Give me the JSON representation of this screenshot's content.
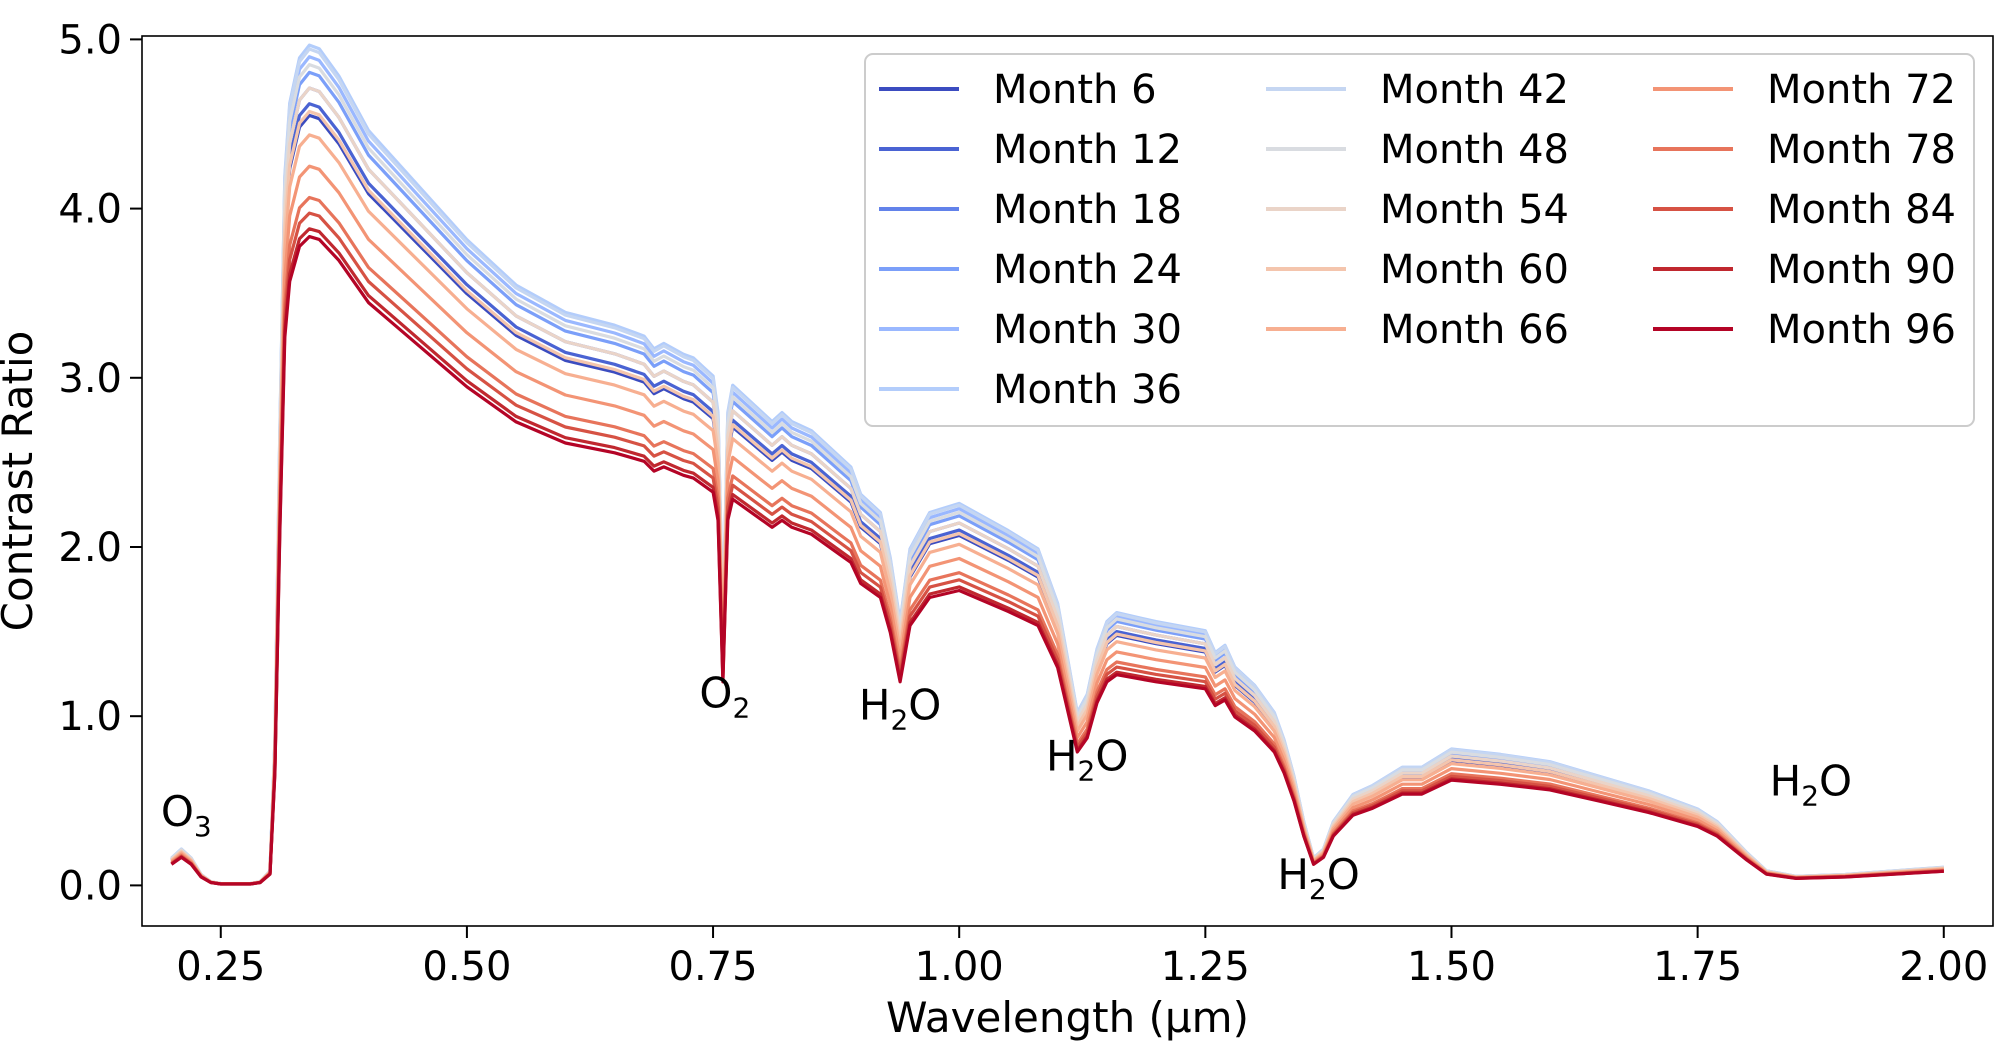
{
  "chart_data": {
    "type": "line",
    "title": "",
    "xlabel": "Wavelength (μm)",
    "ylabel": "Contrast Ratio",
    "xlim": [
      0.17,
      2.05
    ],
    "ylim": [
      -0.24,
      5.02
    ],
    "xticks": [
      0.25,
      0.5,
      0.75,
      1.0,
      1.25,
      1.5,
      1.75,
      2.0
    ],
    "xtick_labels": [
      "0.25",
      "0.50",
      "0.75",
      "1.00",
      "1.25",
      "1.50",
      "1.75",
      "2.00"
    ],
    "yticks": [
      0.0,
      1.0,
      2.0,
      3.0,
      4.0,
      5.0
    ],
    "ytick_labels": [
      "0.0",
      "1.0",
      "2.0",
      "3.0",
      "4.0",
      "5.0"
    ],
    "grid": false,
    "legend": {
      "placement": "top-right",
      "columns": 3
    },
    "colormap": "coolwarm",
    "series": [
      {
        "name": "Month 6",
        "color": "#3b4cc0",
        "scale": 0.985
      },
      {
        "name": "Month 12",
        "color": "#4a63d3",
        "scale": 1.0
      },
      {
        "name": "Month 18",
        "color": "#6282ea",
        "scale": 1.02
      },
      {
        "name": "Month 24",
        "color": "#7b9ff9",
        "scale": 1.04
      },
      {
        "name": "Month 30",
        "color": "#9ab8ff",
        "scale": 1.06
      },
      {
        "name": "Month 36",
        "color": "#b3cdfb",
        "scale": 1.075
      },
      {
        "name": "Month 42",
        "color": "#c5d6f2",
        "scale": 1.07
      },
      {
        "name": "Month 48",
        "color": "#d9dce1",
        "scale": 1.05
      },
      {
        "name": "Month 54",
        "color": "#ead4c8",
        "scale": 1.02
      },
      {
        "name": "Month 60",
        "color": "#f4c5ad",
        "scale": 0.99
      },
      {
        "name": "Month 66",
        "color": "#f7af91",
        "scale": 0.96
      },
      {
        "name": "Month 72",
        "color": "#f39475",
        "scale": 0.92
      },
      {
        "name": "Month 78",
        "color": "#e7745b",
        "scale": 0.88
      },
      {
        "name": "Month 84",
        "color": "#d65244",
        "scale": 0.86
      },
      {
        "name": "Month 90",
        "color": "#c0282f",
        "scale": 0.84
      },
      {
        "name": "Month 96",
        "color": "#b40426",
        "scale": 0.83
      }
    ],
    "baseline_spectrum": {
      "x": [
        0.2,
        0.21,
        0.22,
        0.23,
        0.24,
        0.25,
        0.26,
        0.27,
        0.28,
        0.29,
        0.3,
        0.305,
        0.31,
        0.315,
        0.32,
        0.33,
        0.34,
        0.35,
        0.37,
        0.4,
        0.45,
        0.5,
        0.55,
        0.6,
        0.65,
        0.68,
        0.69,
        0.7,
        0.72,
        0.73,
        0.74,
        0.75,
        0.755,
        0.76,
        0.765,
        0.77,
        0.8,
        0.81,
        0.82,
        0.83,
        0.85,
        0.88,
        0.89,
        0.9,
        0.91,
        0.92,
        0.93,
        0.94,
        0.95,
        0.97,
        1.0,
        1.05,
        1.08,
        1.1,
        1.11,
        1.12,
        1.13,
        1.14,
        1.15,
        1.16,
        1.2,
        1.25,
        1.26,
        1.27,
        1.28,
        1.3,
        1.32,
        1.33,
        1.34,
        1.35,
        1.36,
        1.37,
        1.38,
        1.4,
        1.42,
        1.45,
        1.47,
        1.5,
        1.55,
        1.6,
        1.65,
        1.7,
        1.75,
        1.77,
        1.8,
        1.82,
        1.85,
        1.9,
        1.95,
        2.0
      ],
      "y": [
        0.15,
        0.2,
        0.15,
        0.06,
        0.02,
        0.01,
        0.01,
        0.01,
        0.01,
        0.02,
        0.08,
        0.8,
        2.5,
        3.9,
        4.3,
        4.55,
        4.62,
        4.6,
        4.45,
        4.15,
        3.85,
        3.55,
        3.3,
        3.15,
        3.08,
        3.02,
        2.95,
        2.98,
        2.92,
        2.9,
        2.85,
        2.8,
        2.6,
        1.45,
        2.6,
        2.75,
        2.6,
        2.55,
        2.6,
        2.55,
        2.5,
        2.35,
        2.3,
        2.15,
        2.1,
        2.05,
        1.8,
        1.45,
        1.85,
        2.05,
        2.1,
        1.95,
        1.85,
        1.55,
        1.25,
        0.95,
        1.05,
        1.3,
        1.45,
        1.5,
        1.45,
        1.4,
        1.28,
        1.32,
        1.2,
        1.1,
        0.95,
        0.8,
        0.6,
        0.35,
        0.15,
        0.2,
        0.35,
        0.5,
        0.55,
        0.65,
        0.65,
        0.75,
        0.72,
        0.68,
        0.6,
        0.52,
        0.42,
        0.35,
        0.18,
        0.08,
        0.05,
        0.06,
        0.08,
        0.1
      ]
    },
    "annotations": [
      {
        "base": "O",
        "sub": "3",
        "x": 0.215,
        "y": 0.35
      },
      {
        "base": "O",
        "sub": "2",
        "x": 0.762,
        "y": 1.05
      },
      {
        "base": "H",
        "sub": "2",
        "tail": "O",
        "x": 0.94,
        "y": 0.98
      },
      {
        "base": "H",
        "sub": "2",
        "tail": "O",
        "x": 1.13,
        "y": 0.68
      },
      {
        "base": "H",
        "sub": "2",
        "tail": "O",
        "x": 1.365,
        "y": -0.02
      },
      {
        "base": "H",
        "sub": "2",
        "tail": "O",
        "x": 1.865,
        "y": 0.53
      }
    ]
  }
}
